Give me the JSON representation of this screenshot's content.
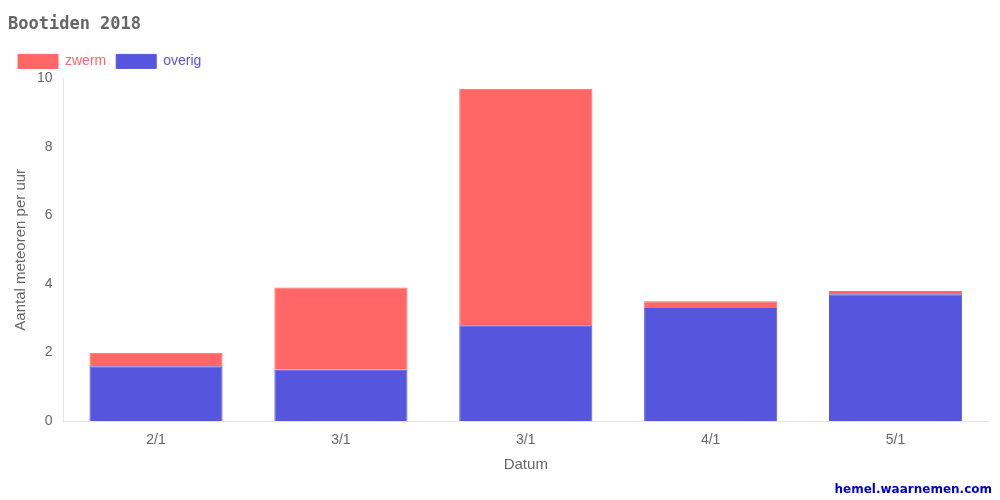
{
  "chart_data": {
    "type": "bar",
    "title": "Bootiden 2018",
    "x_label": "Datum",
    "y_label": "Aantal meteoren per uur",
    "categories": [
      "2/1",
      "3/1",
      "3/1",
      "4/1",
      "5/1"
    ],
    "series": [
      {
        "name": "overig",
        "color": "#5555dd",
        "values": [
          1.6,
          1.5,
          2.8,
          3.3,
          3.7
        ]
      },
      {
        "name": "zwerm",
        "color": "#ff6666",
        "values": [
          0.4,
          2.4,
          6.9,
          0.2,
          0.1
        ]
      }
    ],
    "stacked": true,
    "ylim": [
      0,
      10
    ],
    "yticks": [
      0,
      2,
      4,
      6,
      8,
      10
    ],
    "grid": false,
    "legend": "upper left",
    "annotations": [
      {
        "text": "hemel.waarnemen.com",
        "color": "#0000cc"
      }
    ]
  }
}
